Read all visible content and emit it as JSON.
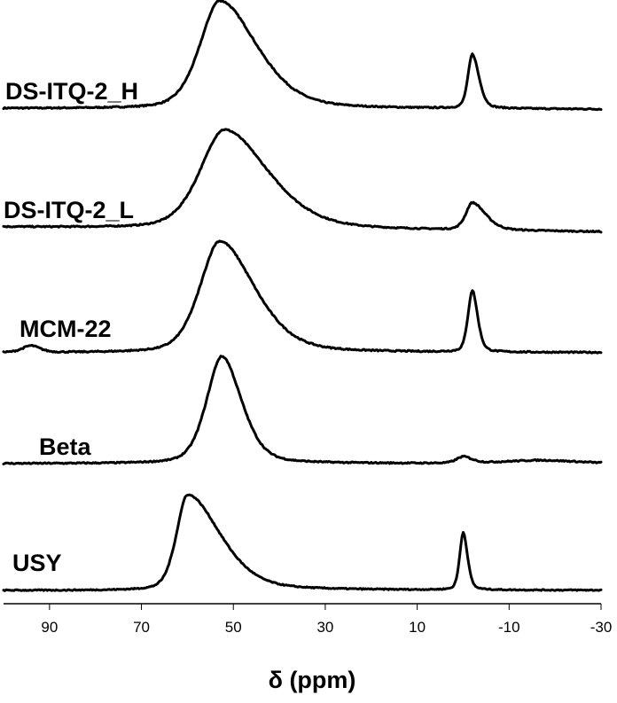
{
  "chart_data": {
    "type": "line",
    "x_axis": {
      "title": "δ (ppm)",
      "range": [
        100,
        -30
      ],
      "reversed": true,
      "ticks": [
        90,
        70,
        50,
        30,
        10,
        -10,
        -30
      ],
      "tick_labels": [
        "90",
        "70",
        "50",
        "30",
        "10",
        "-10",
        "-30"
      ]
    },
    "y_axis": {
      "visible": false
    },
    "grid": false,
    "stacked": true,
    "series": [
      {
        "name": "DS-ITQ-2_H",
        "peaks": [
          {
            "center": 53,
            "height": 1.0,
            "width_left": 4.5,
            "width_right": 8.5
          },
          {
            "center": -2,
            "height": 0.5,
            "width_left": 1.0,
            "width_right": 1.5
          }
        ],
        "baseline_left": 0.03,
        "baseline_right": 0.02
      },
      {
        "name": "DS-ITQ-2_L",
        "peaks": [
          {
            "center": 52,
            "height": 0.95,
            "width_left": 5.5,
            "width_right": 10.0
          },
          {
            "center": -2,
            "height": 0.26,
            "width_left": 1.5,
            "width_right": 3.0
          }
        ],
        "baseline_left": 0.05,
        "baseline_right": 0.0
      },
      {
        "name": "MCM-22",
        "peaks": [
          {
            "center": 94,
            "height": 0.06,
            "width_left": 2.0,
            "width_right": 2.0
          },
          {
            "center": 53,
            "height": 1.0,
            "width_left": 4.5,
            "width_right": 8.0
          },
          {
            "center": -2,
            "height": 0.55,
            "width_left": 1.0,
            "width_right": 1.2
          }
        ],
        "baseline_left": 0.0,
        "baseline_right": 0.0
      },
      {
        "name": "Beta",
        "peaks": [
          {
            "center": 52.5,
            "height": 1.0,
            "width_left": 3.5,
            "width_right": 4.5
          },
          {
            "center": 0,
            "height": 0.06,
            "width_left": 1.5,
            "width_right": 2.0
          },
          {
            "center": -17,
            "height": 0.03,
            "width_left": 8.0,
            "width_right": 8.0
          }
        ],
        "baseline_left": 0.0,
        "baseline_right": 0.0
      },
      {
        "name": "USY",
        "peaks": [
          {
            "center": 60,
            "height": 1.0,
            "width_left": 2.5,
            "width_right": 7.5
          },
          {
            "center": 0,
            "height": 0.6,
            "width_left": 0.8,
            "width_right": 1.0
          }
        ],
        "baseline_left": 0.0,
        "baseline_right": 0.0
      }
    ]
  }
}
